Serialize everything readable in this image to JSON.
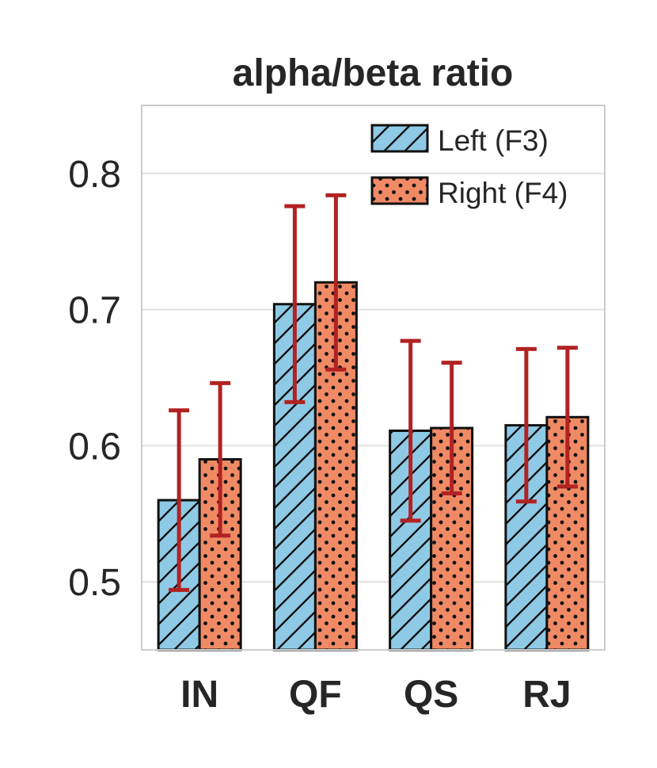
{
  "chart_data": {
    "type": "bar",
    "title": "alpha/beta ratio",
    "xlabel": "",
    "ylabel": "",
    "categories": [
      "IN",
      "QF",
      "QS",
      "RJ"
    ],
    "ylim": [
      0.45,
      0.85
    ],
    "yticks": [
      0.5,
      0.6,
      0.7,
      0.8
    ],
    "ytick_labels": [
      "0.5",
      "0.6",
      "0.7",
      "0.8"
    ],
    "grid": true,
    "legend_position": "top-right",
    "error_bar_color": "#b22222",
    "series": [
      {
        "name": "Left (F3)",
        "color": "#8ecae6",
        "hatch": "diagonal",
        "values": [
          0.56,
          0.704,
          0.611,
          0.615
        ],
        "errors": [
          0.066,
          0.072,
          0.066,
          0.056
        ]
      },
      {
        "name": "Right (F4)",
        "color": "#f08a65",
        "hatch": "dots",
        "values": [
          0.59,
          0.72,
          0.613,
          0.621
        ],
        "errors": [
          0.056,
          0.064,
          0.048,
          0.051
        ]
      }
    ]
  }
}
